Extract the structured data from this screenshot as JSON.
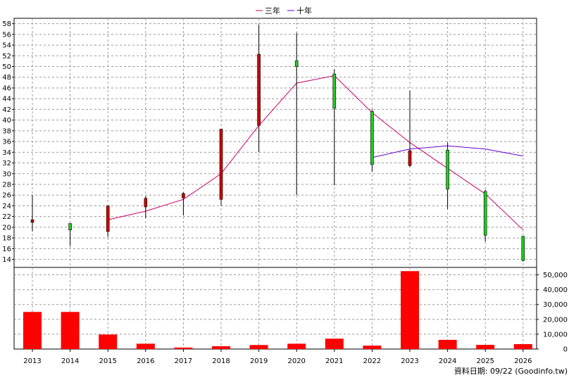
{
  "chart_data": {
    "type": "candlestick",
    "x_categories": [
      "2013",
      "2014",
      "2015",
      "2016",
      "2017",
      "2018",
      "2019",
      "2020",
      "2021",
      "2022",
      "2023",
      "2024",
      "2025",
      "2026"
    ],
    "price_axis": {
      "ylim": [
        12.5,
        59
      ],
      "ticks": [
        14,
        16,
        18,
        20,
        22,
        24,
        26,
        28,
        30,
        32,
        34,
        36,
        38,
        40,
        42,
        44,
        46,
        48,
        50,
        52,
        54,
        56,
        58
      ]
    },
    "volume_axis": {
      "ylim": [
        0,
        55000
      ],
      "ticks": [
        0,
        10000,
        20000,
        30000,
        40000,
        50000
      ],
      "tick_labels": [
        "0",
        "10,000",
        "20,000",
        "30,000",
        "40,000",
        "50,000"
      ]
    },
    "candles": [
      {
        "year": "2013",
        "open": 20.9,
        "close": 21.4,
        "high": 26.0,
        "low": 19.2
      },
      {
        "year": "2014",
        "open": 20.7,
        "close": 19.5,
        "high": 20.7,
        "low": 16.5
      },
      {
        "year": "2015",
        "open": 19.2,
        "close": 24.0,
        "high": 24.0,
        "low": 18.2
      },
      {
        "year": "2016",
        "open": 23.8,
        "close": 25.4,
        "high": 25.8,
        "low": 21.7
      },
      {
        "year": "2017",
        "open": 25.5,
        "close": 26.3,
        "high": 26.5,
        "low": 22.2
      },
      {
        "year": "2018",
        "open": 25.2,
        "close": 38.3,
        "high": 38.3,
        "low": 24.0
      },
      {
        "year": "2019",
        "open": 39.0,
        "close": 52.3,
        "high": 57.8,
        "low": 34.0
      },
      {
        "year": "2020",
        "open": 51.1,
        "close": 50.0,
        "high": 56.3,
        "low": 26.0
      },
      {
        "year": "2021",
        "open": 48.6,
        "close": 42.2,
        "high": 49.5,
        "low": 27.8
      },
      {
        "year": "2022",
        "open": 41.6,
        "close": 31.7,
        "high": 42.0,
        "low": 30.4
      },
      {
        "year": "2023",
        "open": 31.5,
        "close": 34.3,
        "high": 45.5,
        "low": 31.3
      },
      {
        "year": "2024",
        "open": 34.4,
        "close": 27.1,
        "high": 35.8,
        "low": 23.4
      },
      {
        "year": "2025",
        "open": 26.7,
        "close": 18.5,
        "high": 27.0,
        "low": 17.3
      },
      {
        "year": "2026",
        "open": 18.3,
        "close": 13.8,
        "high": 18.3,
        "low": 13.6
      }
    ],
    "volumes": [
      25000,
      25000,
      9800,
      3600,
      1000,
      1900,
      2700,
      3600,
      7000,
      2300,
      52500,
      6200,
      2800,
      3300
    ],
    "series": [
      {
        "name": "三年",
        "color": "#cc0066",
        "values": [
          null,
          null,
          21.4,
          23.0,
          25.2,
          30.0,
          39.0,
          46.9,
          48.3,
          41.4,
          35.8,
          31.0,
          26.2,
          19.5
        ]
      },
      {
        "name": "十年",
        "color": "#6600cc",
        "values": [
          null,
          null,
          null,
          null,
          null,
          null,
          null,
          null,
          null,
          33.0,
          34.6,
          35.2,
          34.6,
          33.3
        ]
      }
    ],
    "colors": {
      "up": "#cc0000",
      "down": "#22cc22",
      "volume": "#ff0000",
      "grid": "#999999"
    },
    "grid": true,
    "legend_position": "top-center"
  },
  "footer": {
    "data_date_label": "資料日期: 09/22 (Goodinfo.tw)"
  }
}
